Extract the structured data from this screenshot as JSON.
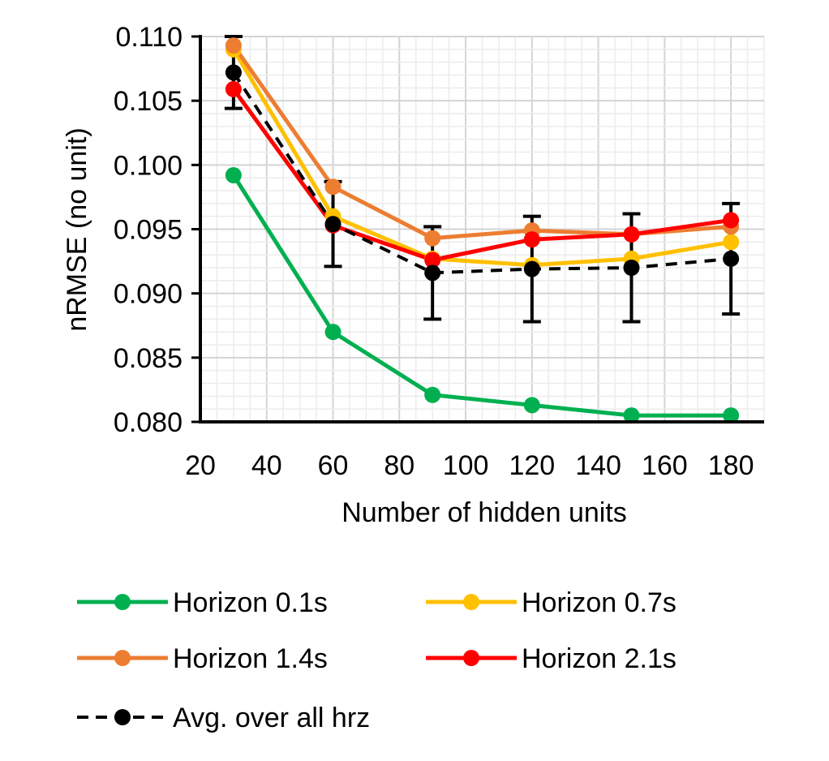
{
  "chart_data": {
    "type": "line",
    "title": "",
    "xlabel": "Number of hidden units",
    "ylabel": "nRMSE (no unit)",
    "xlim": [
      20,
      190
    ],
    "ylim": [
      0.08,
      0.11
    ],
    "x_ticks": [
      "20",
      "40",
      "60",
      "80",
      "100",
      "120",
      "140",
      "160",
      "180"
    ],
    "y_ticks": [
      "0.080",
      "0.085",
      "0.090",
      "0.095",
      "0.100",
      "0.105",
      "0.110"
    ],
    "grid": true,
    "legend_position": "bottom",
    "x": [
      30,
      60,
      90,
      120,
      150,
      180
    ],
    "series": [
      {
        "name": "Horizon 0.1s",
        "color": "#00b050",
        "dashed": false,
        "values": [
          0.0992,
          0.087,
          0.0821,
          0.0813,
          0.0805,
          0.0805
        ]
      },
      {
        "name": "Horizon 0.7s",
        "color": "#ffc000",
        "dashed": false,
        "values": [
          0.109,
          0.096,
          0.0927,
          0.0922,
          0.0927,
          0.094
        ]
      },
      {
        "name": "Horizon 1.4s",
        "color": "#ed7d31",
        "dashed": false,
        "values": [
          0.1093,
          0.0983,
          0.0943,
          0.0949,
          0.0946,
          0.0952
        ]
      },
      {
        "name": "Horizon 2.1s",
        "color": "#ff0000",
        "dashed": false,
        "values": [
          0.1059,
          0.0953,
          0.0926,
          0.0942,
          0.0946,
          0.0957
        ]
      },
      {
        "name": "Avg. over all hrz",
        "color": "#000000",
        "dashed": true,
        "values": [
          0.1072,
          0.0954,
          0.0916,
          0.0919,
          0.092,
          0.0927
        ],
        "error": [
          0.0028,
          0.0033,
          0.0036,
          0.0041,
          0.0042,
          0.0043
        ]
      }
    ]
  }
}
